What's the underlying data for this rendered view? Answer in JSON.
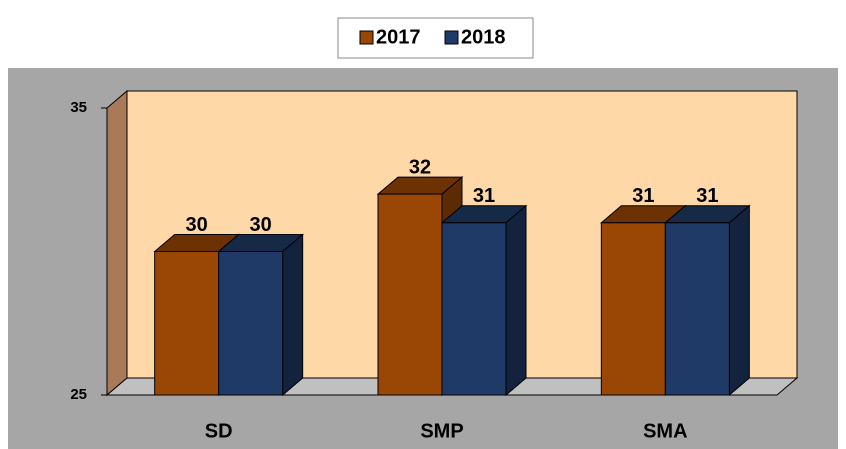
{
  "chart_data": {
    "type": "bar3d",
    "categories": [
      "SD",
      "SMP",
      "SMA"
    ],
    "series": [
      {
        "name": "2017",
        "color": "#9a4706",
        "values": [
          30,
          32,
          31
        ]
      },
      {
        "name": "2018",
        "color": "#1f3a66",
        "values": [
          30,
          31,
          31
        ]
      }
    ],
    "ylim": [
      25,
      35
    ],
    "yticks": [
      25,
      35
    ],
    "legend": "top"
  }
}
